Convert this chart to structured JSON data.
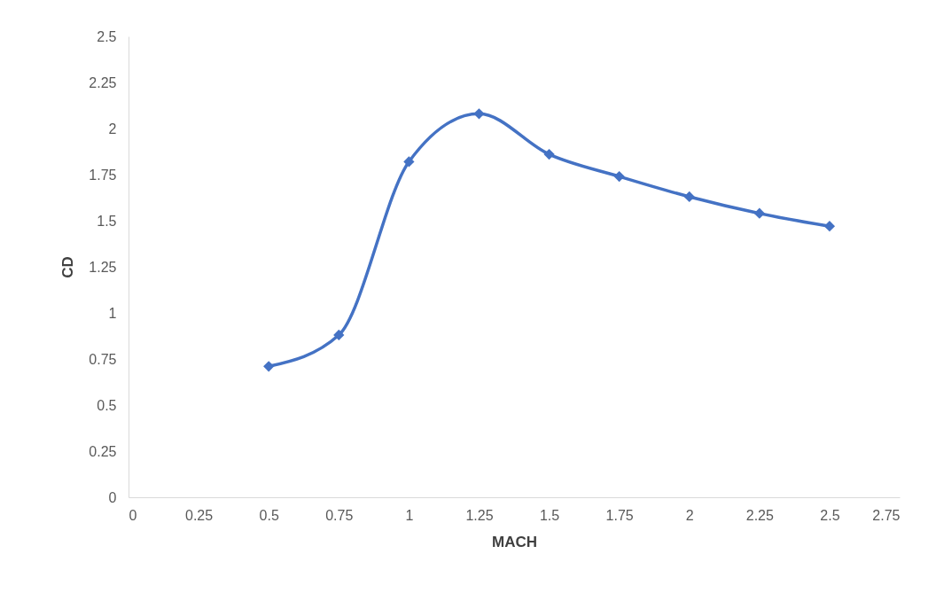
{
  "chart_data": {
    "type": "line",
    "xlabel": "MACH",
    "ylabel": "CD",
    "x": [
      0.5,
      0.75,
      1,
      1.25,
      1.5,
      1.75,
      2,
      2.25,
      2.5
    ],
    "series": [
      {
        "color": "#4472c4",
        "values": [
          0.71,
          0.88,
          1.82,
          2.08,
          1.86,
          1.74,
          1.63,
          1.54,
          1.47
        ]
      }
    ],
    "xlim": [
      0,
      2.75
    ],
    "xticks": [
      0,
      0.25,
      0.5,
      0.75,
      1,
      1.25,
      1.5,
      1.75,
      2,
      2.25,
      2.5,
      2.75
    ],
    "ylim": [
      0,
      2.5
    ],
    "yticks": [
      0,
      0.25,
      0.5,
      0.75,
      1,
      1.25,
      1.5,
      1.75,
      2,
      2.25,
      2.5
    ],
    "marker": "diamond",
    "line_style": "solid"
  }
}
